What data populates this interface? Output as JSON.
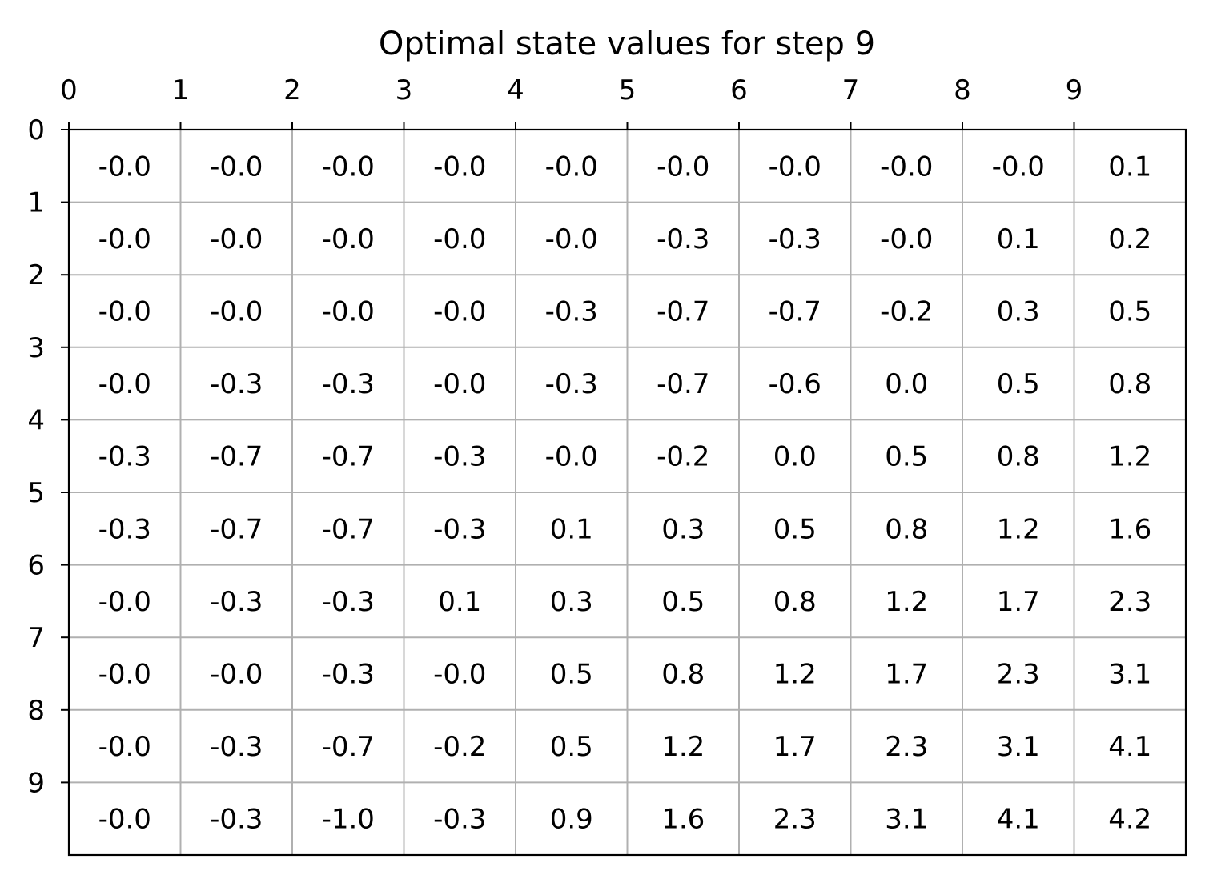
{
  "chart_data": {
    "type": "table",
    "title": "Optimal state values for step 9",
    "xticks": [
      "0",
      "1",
      "2",
      "3",
      "4",
      "5",
      "6",
      "7",
      "8",
      "9"
    ],
    "yticks": [
      "0",
      "1",
      "2",
      "3",
      "4",
      "5",
      "6",
      "7",
      "8",
      "9"
    ],
    "xaxis_position": "top",
    "grid": true,
    "values": [
      [
        "-0.0",
        "-0.0",
        "-0.0",
        "-0.0",
        "-0.0",
        "-0.0",
        "-0.0",
        "-0.0",
        "-0.0",
        "0.1"
      ],
      [
        "-0.0",
        "-0.0",
        "-0.0",
        "-0.0",
        "-0.0",
        "-0.3",
        "-0.3",
        "-0.0",
        "0.1",
        "0.2"
      ],
      [
        "-0.0",
        "-0.0",
        "-0.0",
        "-0.0",
        "-0.3",
        "-0.7",
        "-0.7",
        "-0.2",
        "0.3",
        "0.5"
      ],
      [
        "-0.0",
        "-0.3",
        "-0.3",
        "-0.0",
        "-0.3",
        "-0.7",
        "-0.6",
        "0.0",
        "0.5",
        "0.8"
      ],
      [
        "-0.3",
        "-0.7",
        "-0.7",
        "-0.3",
        "-0.0",
        "-0.2",
        "0.0",
        "0.5",
        "0.8",
        "1.2"
      ],
      [
        "-0.3",
        "-0.7",
        "-0.7",
        "-0.3",
        "0.1",
        "0.3",
        "0.5",
        "0.8",
        "1.2",
        "1.6"
      ],
      [
        "-0.0",
        "-0.3",
        "-0.3",
        "0.1",
        "0.3",
        "0.5",
        "0.8",
        "1.2",
        "1.7",
        "2.3"
      ],
      [
        "-0.0",
        "-0.0",
        "-0.3",
        "-0.0",
        "0.5",
        "0.8",
        "1.2",
        "1.7",
        "2.3",
        "3.1"
      ],
      [
        "-0.0",
        "-0.3",
        "-0.7",
        "-0.2",
        "0.5",
        "1.2",
        "1.7",
        "2.3",
        "3.1",
        "4.1"
      ],
      [
        "-0.0",
        "-0.3",
        "-1.0",
        "-0.3",
        "0.9",
        "1.6",
        "2.3",
        "3.1",
        "4.1",
        "4.2"
      ]
    ]
  }
}
